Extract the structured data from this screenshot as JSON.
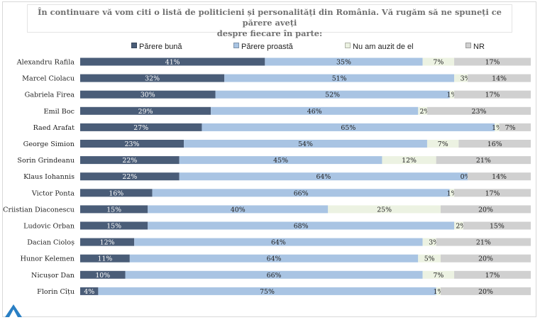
{
  "title_line1": "În continuare vă vom citi o listă de politicieni și personalități din România. Vă rugăm să ne spuneți ce părere aveți",
  "title_line2": "despre fiecare în parte:",
  "chart_data": {
    "type": "bar",
    "orientation": "horizontal",
    "stacked": true,
    "percent": true,
    "categories": [
      "Alexandru Rafila",
      "Marcel Ciolacu",
      "Gabriela Firea",
      "Emil Boc",
      "Raed Arafat",
      "George Simion",
      "Sorin Grindeanu",
      "Klaus Iohannis",
      "Victor Ponta",
      "Criistian Diaconescu",
      "Ludovic Orban",
      "Dacian Cioloș",
      "Hunor Kelemen",
      "Nicușor Dan",
      "Florin Cîțu"
    ],
    "series": [
      {
        "name": "Părere bună",
        "color": "#4a5d78",
        "values": [
          41,
          32,
          30,
          29,
          27,
          23,
          22,
          22,
          16,
          15,
          15,
          12,
          11,
          10,
          4
        ]
      },
      {
        "name": "Părere proastă",
        "color": "#a9c4e3",
        "values": [
          35,
          51,
          52,
          46,
          65,
          54,
          45,
          64,
          66,
          40,
          68,
          64,
          64,
          66,
          75
        ]
      },
      {
        "name": "Nu am auzit de el",
        "color": "#ecf2e2",
        "values": [
          7,
          3,
          1,
          2,
          1,
          7,
          12,
          0,
          1,
          25,
          2,
          3,
          5,
          7,
          1
        ]
      },
      {
        "name": "NR",
        "color": "#d0d0d0",
        "values": [
          17,
          14,
          17,
          23,
          7,
          16,
          21,
          14,
          17,
          20,
          15,
          21,
          20,
          17,
          20
        ]
      }
    ],
    "legend_position": "top",
    "grid": false
  }
}
